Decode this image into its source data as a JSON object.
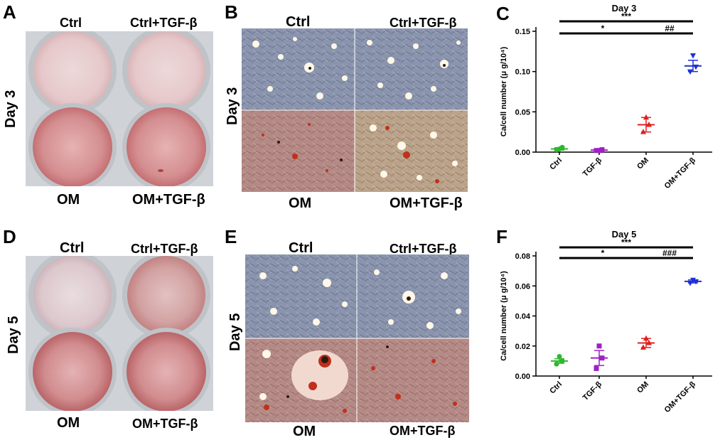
{
  "panels": {
    "A": {
      "letter": "A",
      "top_left": "Ctrl",
      "top_right": "Ctrl+TGF-β",
      "bottom_left": "OM",
      "bottom_right": "OM+TGF-β",
      "side": "Day 3"
    },
    "B": {
      "letter": "B",
      "top_left": "Ctrl",
      "top_right": "Ctrl+TGF-β",
      "bottom_left": "OM",
      "bottom_right": "OM+TGF-β",
      "side": "Day 3"
    },
    "D": {
      "letter": "D",
      "top_left": "Ctrl",
      "top_right": "Ctrl+TGF-β",
      "bottom_left": "OM",
      "bottom_right": "OM+TGF-β",
      "side": "Day 5"
    },
    "E": {
      "letter": "E",
      "top_left": "Ctrl",
      "top_right": "Ctrl+TGF-β",
      "bottom_left": "OM",
      "bottom_right": "OM+TGF-β",
      "side": "Day 5"
    }
  },
  "colors": {
    "ctrl": "#2db82d",
    "tgf": "#a020c8",
    "om": "#e0201e",
    "om_tgf": "#1f2fd6",
    "well_stain": "#c9787a"
  },
  "chart_data": [
    {
      "panel": "C",
      "type": "scatter",
      "title": "Day 3",
      "xlabel": "",
      "ylabel": "Ca/cell number (μ g/10⁴)",
      "categories": [
        "Ctrl",
        "TGF-β",
        "OM",
        "OM+TGF-β"
      ],
      "ylim": [
        0,
        0.15
      ],
      "yticks": [
        "0.00",
        "0.05",
        "0.10",
        "0.15"
      ],
      "markers": [
        "circle",
        "square",
        "triangle-up",
        "triangle-down"
      ],
      "points": [
        [
          0.003,
          0.006,
          0.004
        ],
        [
          0.002,
          0.003,
          0.002
        ],
        [
          0.025,
          0.034,
          0.043
        ],
        [
          0.1,
          0.106,
          0.12
        ]
      ],
      "mean": [
        0.004,
        0.0025,
        0.034,
        0.107
      ],
      "sem": [
        0.0015,
        0.0008,
        0.009,
        0.007
      ],
      "significance": [
        {
          "from": 0,
          "to": 3,
          "label": "***"
        },
        {
          "from": 0,
          "to": 2,
          "label": "*"
        },
        {
          "from": 2,
          "to": 3,
          "label": "##"
        }
      ]
    },
    {
      "panel": "F",
      "type": "scatter",
      "title": "Day 5",
      "xlabel": "",
      "ylabel": "Ca/cell number (μ g/10⁴)",
      "categories": [
        "Ctrl",
        "TGF-β",
        "OM",
        "OM+TGF-β"
      ],
      "ylim": [
        0,
        0.08
      ],
      "yticks": [
        "0.00",
        "0.02",
        "0.04",
        "0.06",
        "0.08"
      ],
      "markers": [
        "circle",
        "square",
        "triangle-up",
        "triangle-down"
      ],
      "points": [
        [
          0.008,
          0.01,
          0.013
        ],
        [
          0.005,
          0.012,
          0.02
        ],
        [
          0.019,
          0.022,
          0.025
        ],
        [
          0.062,
          0.063,
          0.064
        ]
      ],
      "mean": [
        0.01,
        0.012,
        0.022,
        0.063
      ],
      "sem": [
        0.0015,
        0.005,
        0.003,
        0.001
      ],
      "significance": [
        {
          "from": 0,
          "to": 3,
          "label": "***"
        },
        {
          "from": 0,
          "to": 2,
          "label": "*"
        },
        {
          "from": 2,
          "to": 3,
          "label": "###"
        }
      ]
    }
  ]
}
